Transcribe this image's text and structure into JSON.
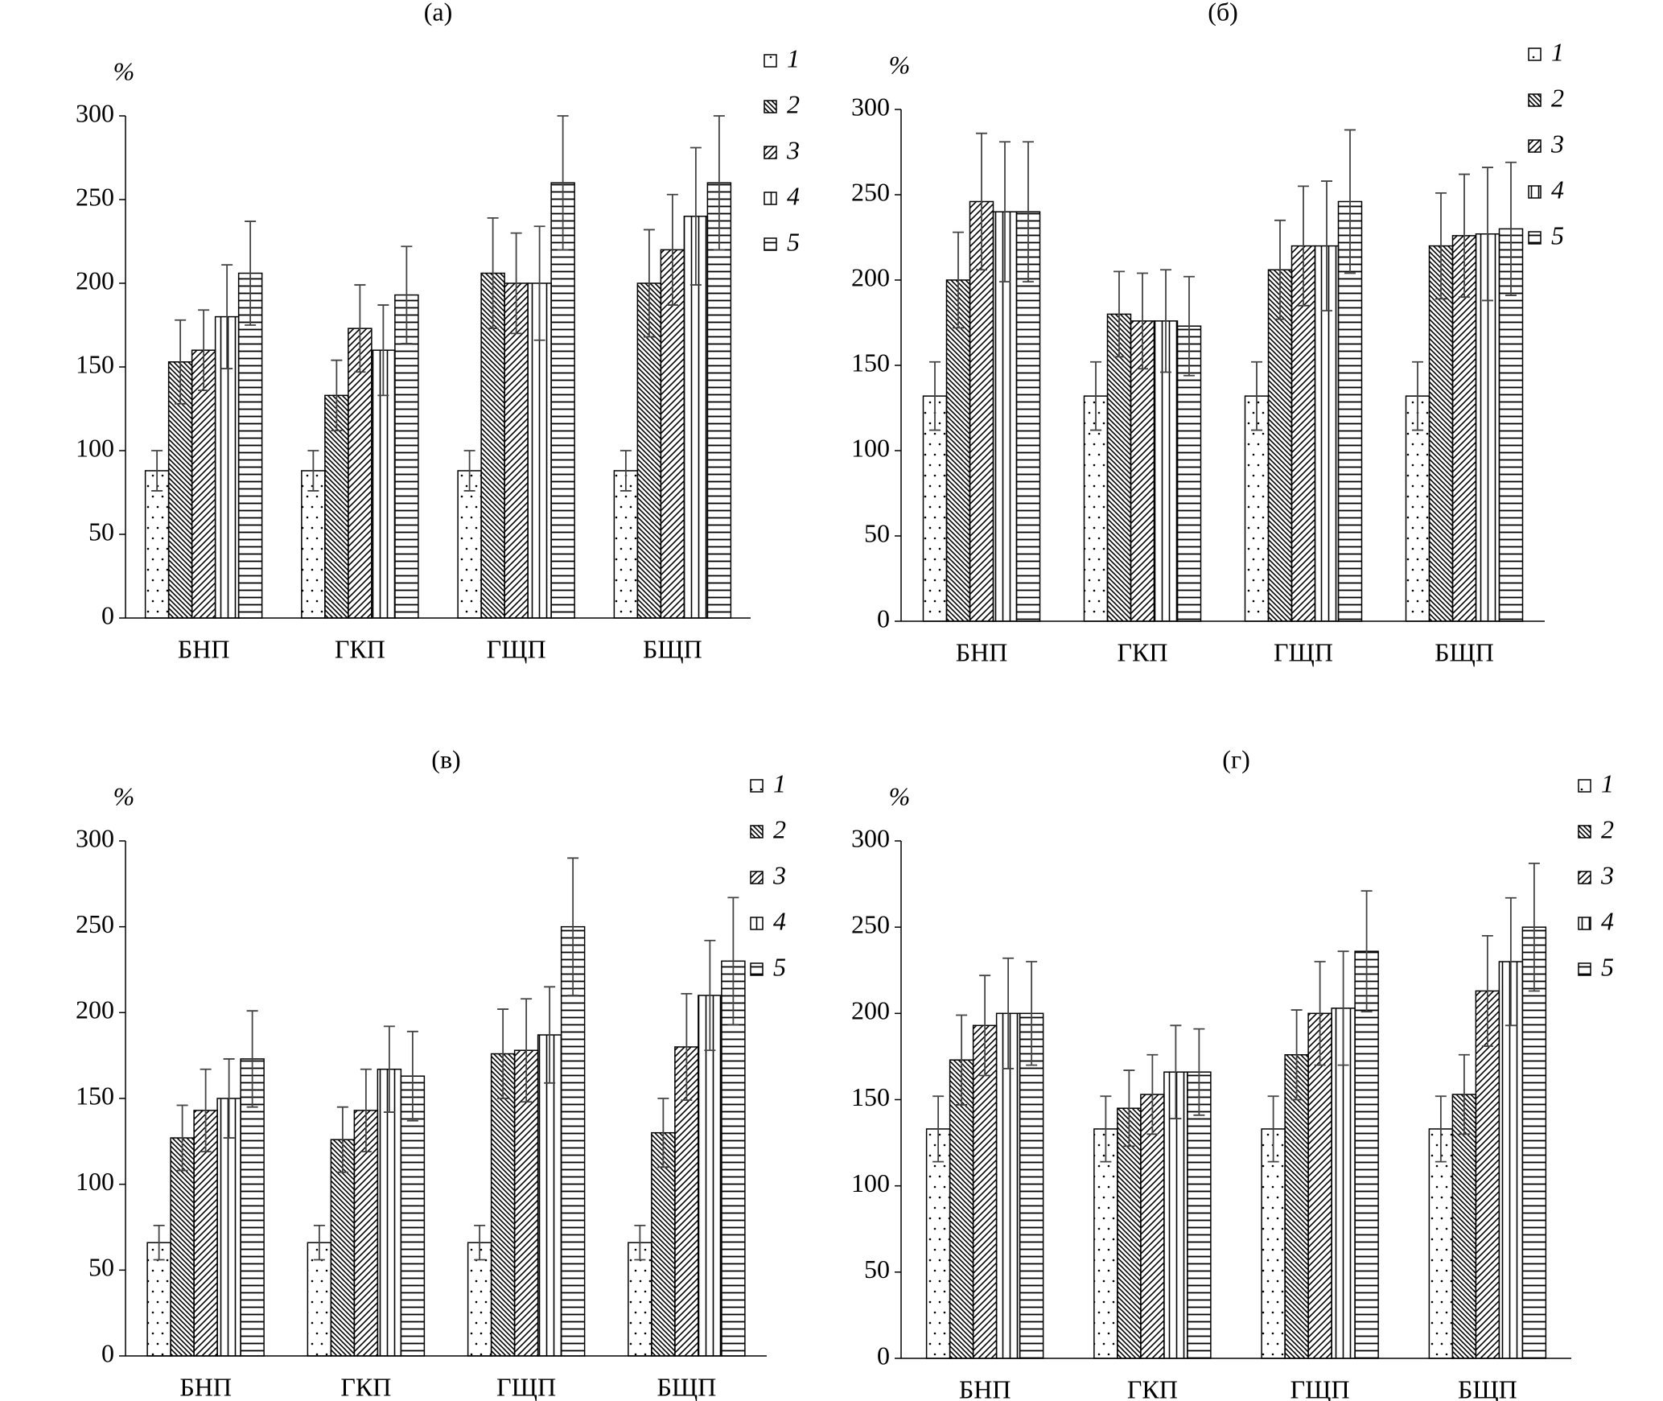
{
  "chart_data": [
    {
      "type": "bar",
      "title": "(а)",
      "y_label": "%",
      "categories": [
        "БНП",
        "ГКП",
        "ГЩП",
        "БЩП"
      ],
      "ylim": [
        0,
        300
      ],
      "yticks": [
        0,
        50,
        100,
        150,
        200,
        250,
        300
      ],
      "series": [
        {
          "name": "1",
          "color": "#000",
          "pattern": "dots",
          "values": [
            88,
            88,
            88,
            88
          ],
          "errors": [
            12,
            12,
            12,
            12
          ]
        },
        {
          "name": "2",
          "color": "#000",
          "pattern": "backslash",
          "values": [
            153,
            133,
            206,
            200
          ],
          "errors": [
            25,
            21,
            33,
            32
          ]
        },
        {
          "name": "3",
          "color": "#000",
          "pattern": "slash",
          "values": [
            160,
            173,
            200,
            220
          ],
          "errors": [
            24,
            26,
            30,
            33
          ]
        },
        {
          "name": "4",
          "color": "#000",
          "pattern": "vertical",
          "values": [
            180,
            160,
            200,
            240
          ],
          "errors": [
            31,
            27,
            34,
            41
          ]
        },
        {
          "name": "5",
          "color": "#000",
          "pattern": "horizontal",
          "values": [
            206,
            193,
            260,
            260
          ],
          "errors": [
            31,
            29,
            40,
            40
          ]
        }
      ]
    },
    {
      "type": "bar",
      "title": "(б)",
      "y_label": "%",
      "categories": [
        "БНП",
        "ГКП",
        "ГЩП",
        "БЩП"
      ],
      "ylim": [
        0,
        300
      ],
      "yticks": [
        0,
        50,
        100,
        150,
        200,
        250,
        300
      ],
      "series": [
        {
          "name": "1",
          "color": "#000",
          "pattern": "dots",
          "values": [
            132,
            132,
            132,
            132
          ],
          "errors": [
            20,
            20,
            20,
            20
          ]
        },
        {
          "name": "2",
          "color": "#000",
          "pattern": "backslash",
          "values": [
            200,
            180,
            206,
            220
          ],
          "errors": [
            28,
            25,
            29,
            31
          ]
        },
        {
          "name": "3",
          "color": "#000",
          "pattern": "slash",
          "values": [
            246,
            176,
            220,
            226
          ],
          "errors": [
            40,
            28,
            35,
            36
          ]
        },
        {
          "name": "4",
          "color": "#000",
          "pattern": "vertical",
          "values": [
            240,
            176,
            220,
            227
          ],
          "errors": [
            41,
            30,
            38,
            39
          ]
        },
        {
          "name": "5",
          "color": "#000",
          "pattern": "horizontal",
          "values": [
            240,
            173,
            246,
            230
          ],
          "errors": [
            41,
            29,
            42,
            39
          ]
        }
      ]
    },
    {
      "type": "bar",
      "title": "(в)",
      "y_label": "%",
      "categories": [
        "БНП",
        "ГКП",
        "ГЩП",
        "БЩП"
      ],
      "ylim": [
        0,
        300
      ],
      "yticks": [
        0,
        50,
        100,
        150,
        200,
        250,
        300
      ],
      "series": [
        {
          "name": "1",
          "color": "#000",
          "pattern": "dots",
          "values": [
            66,
            66,
            66,
            66
          ],
          "errors": [
            10,
            10,
            10,
            10
          ]
        },
        {
          "name": "2",
          "color": "#000",
          "pattern": "backslash",
          "values": [
            127,
            126,
            176,
            130
          ],
          "errors": [
            19,
            19,
            26,
            20
          ]
        },
        {
          "name": "3",
          "color": "#000",
          "pattern": "slash",
          "values": [
            143,
            143,
            178,
            180
          ],
          "errors": [
            24,
            24,
            30,
            31
          ]
        },
        {
          "name": "4",
          "color": "#000",
          "pattern": "vertical",
          "values": [
            150,
            167,
            187,
            210
          ],
          "errors": [
            23,
            25,
            28,
            32
          ]
        },
        {
          "name": "5",
          "color": "#000",
          "pattern": "horizontal",
          "values": [
            173,
            163,
            250,
            230
          ],
          "errors": [
            28,
            26,
            40,
            37
          ]
        }
      ]
    },
    {
      "type": "bar",
      "title": "(г)",
      "y_label": "%",
      "categories": [
        "БНП",
        "ГКП",
        "ГЩП",
        "БЩП"
      ],
      "ylim": [
        0,
        300
      ],
      "yticks": [
        0,
        50,
        100,
        150,
        200,
        250,
        300
      ],
      "series": [
        {
          "name": "1",
          "color": "#000",
          "pattern": "dots",
          "values": [
            133,
            133,
            133,
            133
          ],
          "errors": [
            19,
            19,
            19,
            19
          ]
        },
        {
          "name": "2",
          "color": "#000",
          "pattern": "backslash",
          "values": [
            173,
            145,
            176,
            153
          ],
          "errors": [
            26,
            22,
            26,
            23
          ]
        },
        {
          "name": "3",
          "color": "#000",
          "pattern": "slash",
          "values": [
            193,
            153,
            200,
            213
          ],
          "errors": [
            29,
            23,
            30,
            32
          ]
        },
        {
          "name": "4",
          "color": "#000",
          "pattern": "vertical",
          "values": [
            200,
            166,
            203,
            230
          ],
          "errors": [
            32,
            27,
            33,
            37
          ]
        },
        {
          "name": "5",
          "color": "#000",
          "pattern": "horizontal",
          "values": [
            200,
            166,
            236,
            250
          ],
          "errors": [
            30,
            25,
            35,
            37
          ]
        }
      ]
    }
  ]
}
